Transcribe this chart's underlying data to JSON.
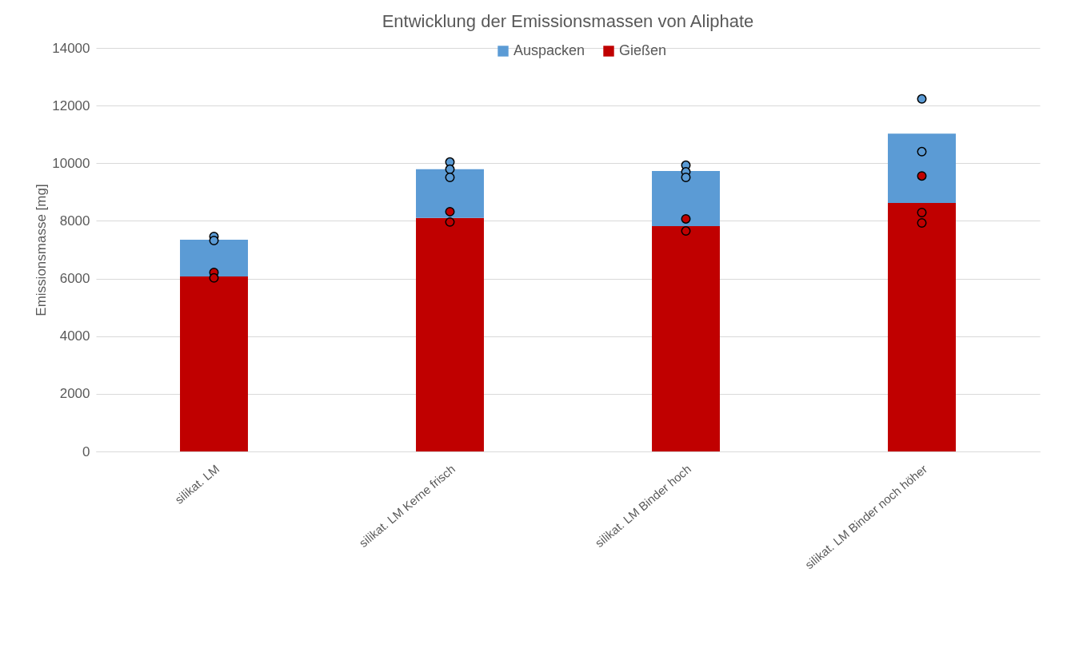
{
  "chart_data": {
    "type": "bar",
    "title": "Entwicklung der Emissionsmassen von Aliphate",
    "ylabel": "Emissionsmasse [mg]",
    "categories": [
      "silikat. LM",
      "silikat. LM Kerne frisch",
      "silikat. LM Binder hoch",
      "silikat. LM Binder noch höher"
    ],
    "stacked": true,
    "series": [
      {
        "name": "Gießen",
        "color": "#c00000",
        "values": [
          6070,
          8100,
          7820,
          8620
        ]
      },
      {
        "name": "Auspacken",
        "color": "#5b9bd5",
        "values": [
          1280,
          1690,
          1910,
          2410
        ]
      },
      {
        "type": "scatter",
        "color": "#c00000",
        "x": [
          "silikat. LM",
          "silikat. LM",
          "silikat. LM Kerne frisch",
          "silikat. LM Kerne frisch",
          "silikat. LM Binder hoch",
          "silikat. LM Binder hoch",
          "silikat. LM Binder noch höher",
          "silikat. LM Binder noch höher",
          "silikat. LM Binder noch höher"
        ],
        "values": [
          6210,
          6020,
          8320,
          7960,
          8070,
          7650,
          9560,
          8290,
          7930
        ]
      },
      {
        "type": "scatter",
        "color": "#5b9bd5",
        "x": [
          "silikat. LM",
          "silikat. LM",
          "silikat. LM Kerne frisch",
          "silikat. LM Kerne frisch",
          "silikat. LM Kerne frisch",
          "silikat. LM Binder hoch",
          "silikat. LM Binder hoch",
          "silikat. LM Binder hoch",
          "silikat. LM Binder noch höher",
          "silikat. LM Binder noch höher"
        ],
        "values": [
          7460,
          7320,
          10040,
          9790,
          9510,
          9930,
          9700,
          9510,
          12230,
          10400
        ]
      }
    ],
    "ylim": [
      0,
      14000
    ],
    "yticks": [
      0,
      2000,
      4000,
      6000,
      8000,
      10000,
      12000,
      14000
    ],
    "grid": "y",
    "legend": "top",
    "marker": "circle"
  }
}
